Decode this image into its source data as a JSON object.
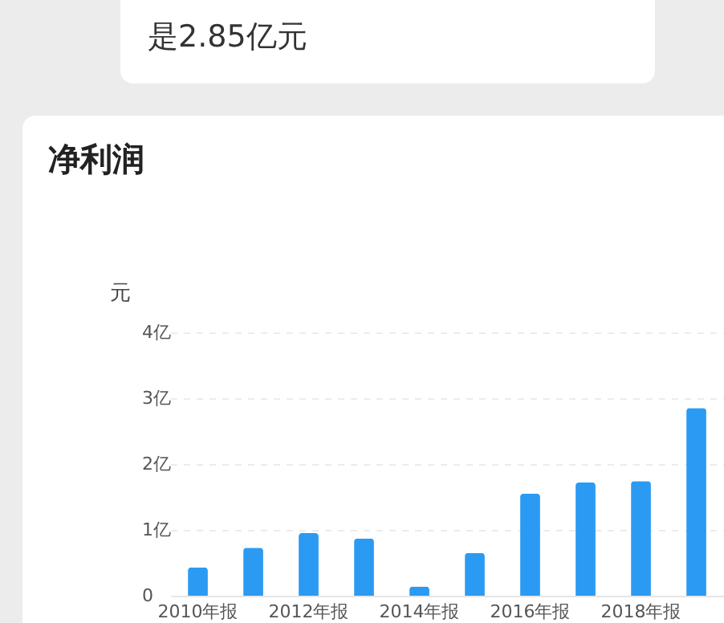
{
  "chart_data": {
    "type": "bar",
    "title": "净利润",
    "ylabel": "元",
    "annotations": [
      "是2.85亿元"
    ],
    "categories": [
      "2010年报",
      null,
      "2012年报",
      null,
      "2014年报",
      null,
      "2016年报",
      null,
      "2018年报",
      null
    ],
    "values": [
      0.43,
      0.73,
      0.95,
      0.87,
      0.14,
      0.65,
      1.55,
      1.72,
      1.74,
      2.85
    ],
    "color": "#2b9af3",
    "ylim": [
      0,
      4
    ],
    "yticks": [
      0,
      {
        "value": 1,
        "label": "1亿"
      },
      {
        "value": 2,
        "label": "2亿"
      },
      {
        "value": 3,
        "label": "3亿"
      },
      {
        "value": 4,
        "label": "4亿"
      }
    ],
    "grid": "y"
  }
}
